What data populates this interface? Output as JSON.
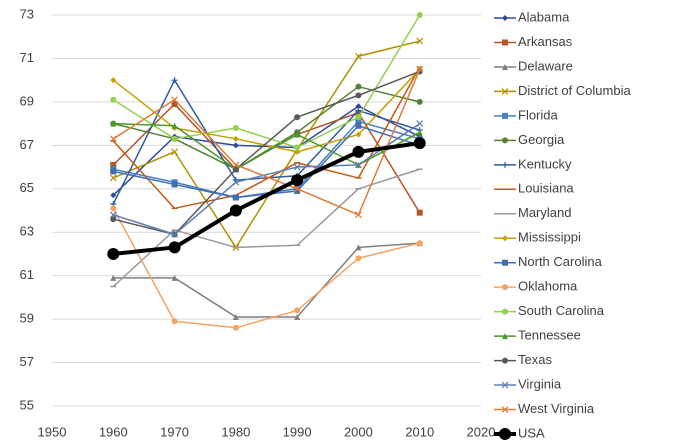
{
  "chart_data": {
    "type": "line",
    "x": [
      1960,
      1970,
      1980,
      1990,
      2000,
      2010
    ],
    "xlim": [
      1950,
      2020
    ],
    "xticks": [
      1950,
      1960,
      1970,
      1980,
      1990,
      2000,
      2010,
      2020
    ],
    "ylim": [
      55,
      73
    ],
    "yticks": [
      55,
      57,
      59,
      61,
      63,
      65,
      67,
      69,
      71,
      73
    ],
    "grid": true,
    "legend": "right",
    "series": [
      {
        "name": "Alabama",
        "color": "#2e4a9e",
        "marker": "diamond",
        "values": [
          64.7,
          67.4,
          67.0,
          66.9,
          68.8,
          67.4
        ]
      },
      {
        "name": "Arkansas",
        "color": "#b5562a",
        "marker": "square",
        "values": [
          66.1,
          68.9,
          65.9,
          67.5,
          68.5,
          63.9
        ]
      },
      {
        "name": "Delaware",
        "color": "#7f7f7f",
        "marker": "triangle",
        "values": [
          60.9,
          60.9,
          59.1,
          59.1,
          62.3,
          62.5
        ]
      },
      {
        "name": "District of Columbia",
        "color": "#b38f00",
        "marker": "x",
        "values": [
          65.5,
          66.7,
          62.3,
          66.8,
          71.1,
          71.8
        ]
      },
      {
        "name": "Florida",
        "color": "#4a7fc0",
        "marker": "square",
        "values": [
          65.9,
          65.3,
          64.6,
          65.0,
          68.1,
          67.3
        ]
      },
      {
        "name": "Georgia",
        "color": "#548235",
        "marker": "circle",
        "values": [
          68.0,
          67.3,
          65.9,
          67.6,
          69.7,
          69.0
        ]
      },
      {
        "name": "Kentucky",
        "color": "#2e5d9e",
        "marker": "plus",
        "values": [
          64.3,
          70.0,
          65.4,
          65.6,
          68.6,
          67.7
        ]
      },
      {
        "name": "Louisiana",
        "color": "#c55a11",
        "marker": "dash",
        "values": [
          67.2,
          64.1,
          64.7,
          66.2,
          65.5,
          70.6
        ]
      },
      {
        "name": "Maryland",
        "color": "#999999",
        "marker": "dash",
        "values": [
          60.5,
          63.1,
          62.3,
          62.4,
          65.0,
          65.9
        ]
      },
      {
        "name": "Mississippi",
        "color": "#c9a000",
        "marker": "diamond",
        "values": [
          70.0,
          67.8,
          67.3,
          66.7,
          67.5,
          70.5
        ]
      },
      {
        "name": "North Carolina",
        "color": "#3f6fb0",
        "marker": "square",
        "values": [
          65.8,
          65.2,
          64.6,
          64.9,
          67.9,
          67.0
        ]
      },
      {
        "name": "Oklahoma",
        "color": "#f4a460",
        "marker": "circle",
        "values": [
          64.1,
          58.9,
          58.6,
          59.4,
          61.8,
          62.5
        ]
      },
      {
        "name": "South Carolina",
        "color": "#92d050",
        "marker": "circle",
        "values": [
          69.1,
          67.3,
          67.8,
          66.9,
          68.3,
          73.0
        ]
      },
      {
        "name": "Tennessee",
        "color": "#4c9a2a",
        "marker": "triangle",
        "values": [
          68.0,
          67.9,
          65.9,
          67.5,
          66.1,
          67.6
        ]
      },
      {
        "name": "Texas",
        "color": "#595959",
        "marker": "circle",
        "values": [
          63.6,
          62.9,
          65.9,
          68.3,
          69.3,
          70.4
        ]
      },
      {
        "name": "Virginia",
        "color": "#5b7fb5",
        "marker": "x",
        "values": [
          63.8,
          62.9,
          65.3,
          66.0,
          66.1,
          68.0
        ]
      },
      {
        "name": "West Virginia",
        "color": "#e07b39",
        "marker": "x",
        "values": [
          67.3,
          69.1,
          66.1,
          65.0,
          63.8,
          70.5
        ]
      },
      {
        "name": "USA",
        "color": "#000000",
        "marker": "big",
        "values": [
          62.0,
          62.3,
          64.0,
          65.4,
          66.7,
          67.1
        ]
      }
    ]
  }
}
